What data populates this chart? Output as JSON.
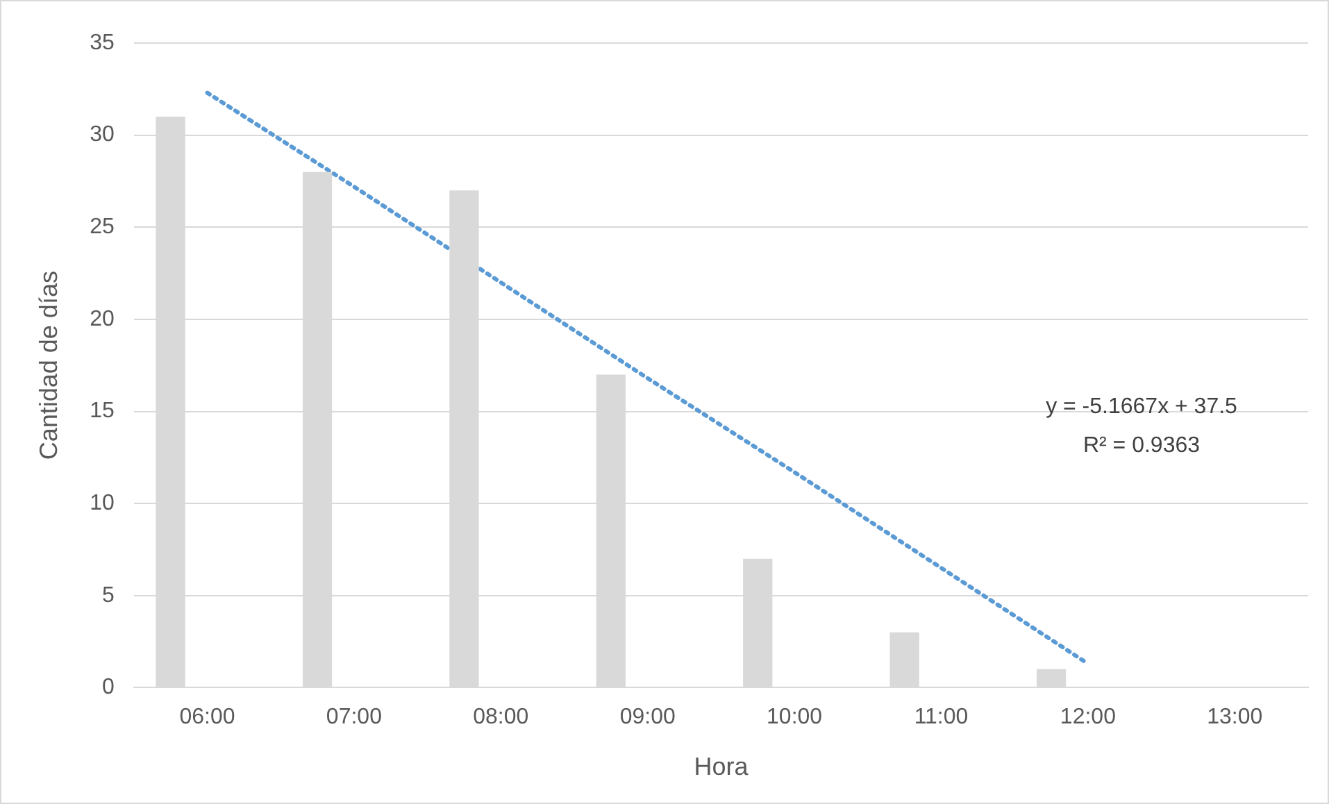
{
  "chart_data": {
    "type": "bar",
    "xlabel": "Hora",
    "ylabel": "Cantidad de días",
    "categories": [
      "06:00",
      "07:00",
      "08:00",
      "09:00",
      "10:00",
      "11:00",
      "12:00",
      "13:00"
    ],
    "series": [
      {
        "color": "#d9d9d9",
        "values": [
          31,
          28,
          27,
          17,
          7,
          3,
          1,
          0
        ]
      },
      {
        "type": "line",
        "color": "#5b9bd5",
        "values": [
          32.3,
          27.2,
          22.0,
          16.8,
          11.7,
          6.5,
          1.3,
          null
        ],
        "line_style": "dotted",
        "marker": "none"
      }
    ],
    "ylim": [
      0,
      35
    ],
    "yticks": [
      0,
      5,
      10,
      15,
      20,
      25,
      30,
      35
    ],
    "grid": "y",
    "legend": false,
    "annotations": [
      "y = -5.1667x + 37.5",
      "R² = 0.9363"
    ]
  }
}
